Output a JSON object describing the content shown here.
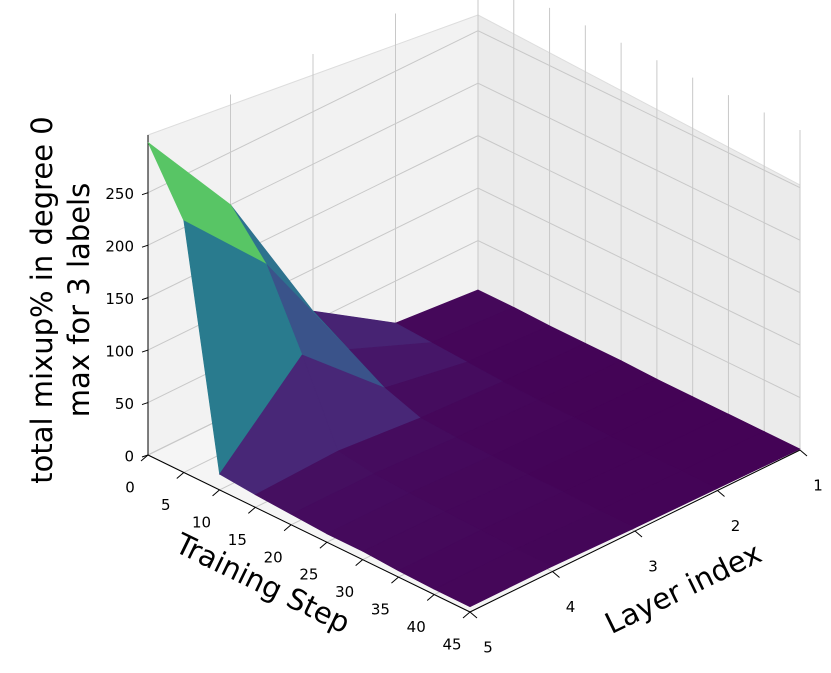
{
  "chart_data": {
    "type": "surface3d",
    "xlabel": "Training Step",
    "ylabel": "Layer index",
    "zlabel": [
      "total mixup% in degree 0",
      "max for 3 labels"
    ],
    "x": [
      0,
      5,
      10,
      15,
      20,
      25,
      30,
      35,
      40,
      45
    ],
    "series": [
      {
        "name": "1",
        "layer": 1,
        "values": [
          3,
          3,
          2,
          2,
          2,
          1,
          1,
          1,
          1,
          1
        ]
      },
      {
        "name": "2",
        "layer": 2,
        "values": [
          10,
          8,
          6,
          4,
          3,
          3,
          2,
          2,
          2,
          2
        ]
      },
      {
        "name": "3",
        "layer": 3,
        "values": [
          60,
          40,
          20,
          8,
          6,
          5,
          4,
          4,
          3,
          3
        ]
      },
      {
        "name": "4",
        "layer": 4,
        "values": [
          200,
          160,
          90,
          15,
          10,
          8,
          7,
          6,
          5,
          5
        ]
      },
      {
        "name": "5",
        "layer": 5,
        "values": [
          298,
          240,
          15,
          12,
          10,
          8,
          8,
          6,
          5,
          5
        ]
      }
    ],
    "colormap": "viridis",
    "xlim": [
      0,
      45
    ],
    "xticks": [
      0,
      5,
      10,
      15,
      20,
      25,
      30,
      35,
      40,
      45
    ],
    "ylim": [
      1,
      5
    ],
    "yticks": [
      1,
      2,
      3,
      4,
      5
    ],
    "zlim": [
      0,
      305
    ],
    "zticks": [
      0,
      50,
      100,
      150,
      200,
      250
    ],
    "grid": true
  }
}
